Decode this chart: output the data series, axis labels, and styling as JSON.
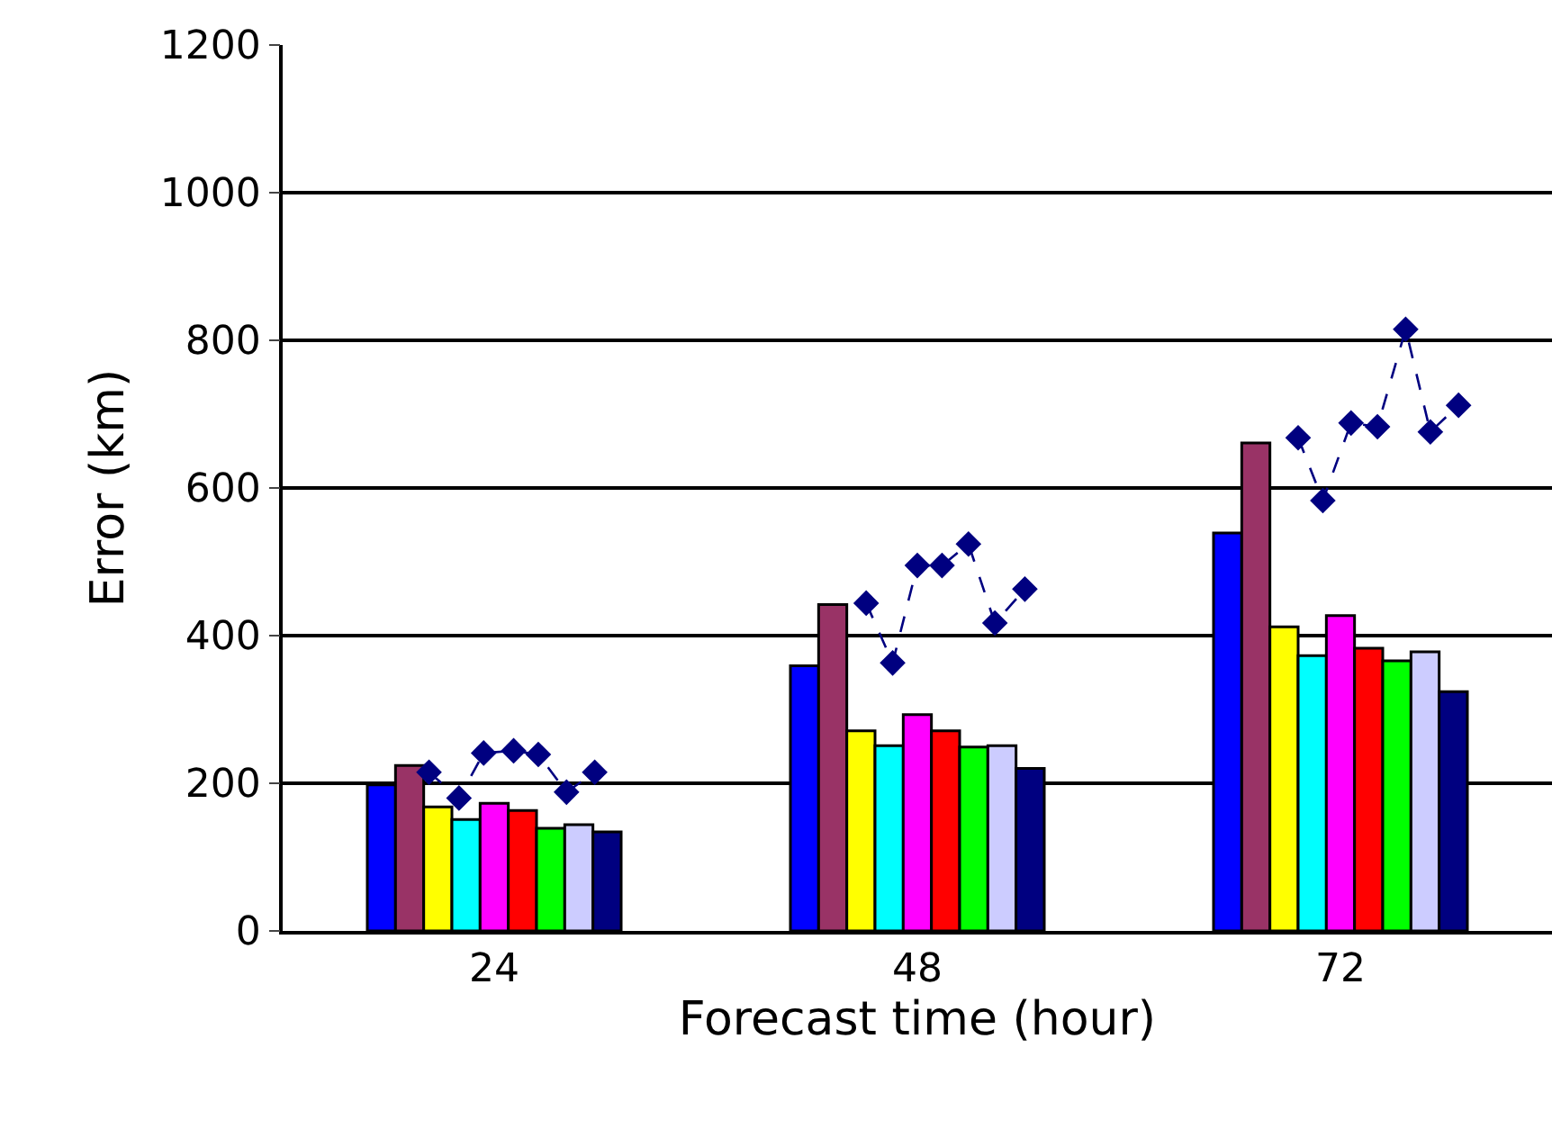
{
  "chart_data": {
    "type": "bar",
    "xlabel": "Forecast time (hour)",
    "ylabel": "Error (km)",
    "x": [
      24,
      48,
      72
    ],
    "xlim": [
      12,
      84
    ],
    "xticks": [
      24,
      48,
      72
    ],
    "ylim": [
      0,
      1200
    ],
    "yticks": [
      0,
      200,
      400,
      600,
      800,
      1000,
      1200
    ],
    "grid": "y",
    "series": [
      {
        "color": "#0000ff",
        "values": [
          198,
          359,
          539
        ]
      },
      {
        "color": "#993366",
        "values": [
          224,
          442,
          661
        ]
      },
      {
        "color": "#ffff00",
        "values": [
          168,
          271,
          412
        ]
      },
      {
        "color": "#00ffff",
        "values": [
          151,
          251,
          373
        ]
      },
      {
        "color": "#ff00ff",
        "values": [
          173,
          293,
          427
        ]
      },
      {
        "color": "#ff0000",
        "values": [
          163,
          271,
          383
        ]
      },
      {
        "color": "#00ff00",
        "values": [
          139,
          249,
          366
        ]
      },
      {
        "color": "#ccccff",
        "values": [
          144,
          251,
          378
        ]
      },
      {
        "color": "#000080",
        "values": [
          134,
          220,
          324
        ]
      },
      {
        "type": "line",
        "color": "#000080",
        "marker": "diamond",
        "line_style": "dashed",
        "x": [
          20.3,
          22,
          23.4,
          25.1,
          26.5,
          28.1,
          29.7
        ],
        "values": [
          215,
          180,
          241,
          244,
          239,
          188,
          215
        ]
      },
      {
        "type": "line",
        "color": "#000080",
        "marker": "diamond",
        "line_style": "dashed",
        "x": [
          45.1,
          46.6,
          48,
          49.4,
          50.9,
          52.4,
          54.1
        ],
        "values": [
          444,
          363,
          495,
          495,
          524,
          417,
          463
        ]
      },
      {
        "type": "line",
        "color": "#000080",
        "marker": "diamond",
        "line_style": "dashed",
        "x": [
          69.6,
          71,
          72.6,
          74.1,
          75.7,
          77.1,
          78.7
        ],
        "values": [
          668,
          583,
          688,
          683,
          815,
          676,
          712
        ]
      }
    ]
  }
}
